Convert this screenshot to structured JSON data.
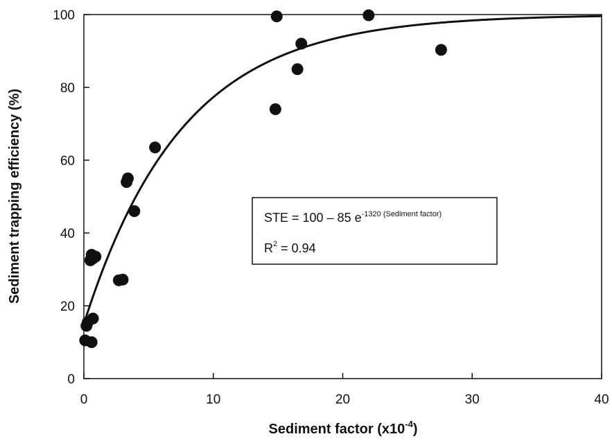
{
  "chart_data": {
    "type": "scatter",
    "title": "",
    "xlabel": "Sediment factor (x10",
    "xlabel_sup": "-4",
    "xlabel_close": ")",
    "ylabel": "Sediment trapping efficiency (%)",
    "xlim": [
      0,
      40
    ],
    "ylim": [
      0,
      100
    ],
    "x_ticks": [
      "0",
      "10",
      "20",
      "30",
      "40"
    ],
    "y_ticks": [
      "0",
      "20",
      "40",
      "60",
      "80",
      "100"
    ],
    "grid": false,
    "series": [
      {
        "points": [
          [
            0.1,
            10.5
          ],
          [
            0.2,
            14.5
          ],
          [
            0.3,
            15.5
          ],
          [
            0.6,
            10.0
          ],
          [
            0.7,
            16.5
          ],
          [
            0.5,
            32.5
          ],
          [
            0.6,
            34.0
          ],
          [
            0.9,
            33.5
          ],
          [
            0.7,
            33.0
          ],
          [
            2.7,
            27.0
          ],
          [
            3.0,
            27.2
          ],
          [
            3.3,
            54.0
          ],
          [
            3.4,
            55.0
          ],
          [
            3.9,
            46.0
          ],
          [
            5.5,
            63.5
          ],
          [
            14.8,
            74.0
          ],
          [
            14.9,
            99.5
          ],
          [
            16.5,
            85.0
          ],
          [
            16.8,
            92.0
          ],
          [
            22.0,
            99.8
          ],
          [
            27.6,
            90.3
          ]
        ]
      }
    ],
    "fit": {
      "equation_prefix": "STE = 100 – 85 e",
      "equation_exponent": "-1320",
      "equation_exponent_note": "(Sediment factor)",
      "r2_prefix": "R",
      "r2_sup": "2",
      "r2_value": " = 0.94",
      "a": 100,
      "b": 85,
      "k": 1320,
      "x_scale": 0.0001
    },
    "colors": {
      "points": "#111111",
      "line": "#111111",
      "axes": "#111111"
    }
  }
}
